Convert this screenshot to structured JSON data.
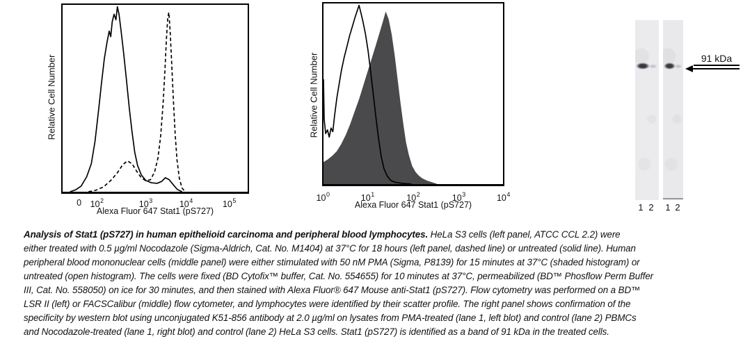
{
  "colors": {
    "curve": "#000000",
    "shaded_fill": "#4a4a4c",
    "strip_background": "#ebebee",
    "band_strong": "#3c3c44",
    "band_faint": "#b6b6bf",
    "text": "#111111"
  },
  "chart_data": [
    {
      "type": "line",
      "panel": "left",
      "title": "",
      "xlabel": "Alexa Fluor 647 Stat1 (pS727)",
      "ylabel": "Relative Cell Number",
      "x_scale": "biexponential (0, 10^2 to 10^5)",
      "grid": false,
      "x_units": "axis_fraction",
      "y_units": "relative_height_0_to_1",
      "ticks": [
        {
          "label": "0",
          "pos": 0.095
        },
        {
          "base": "10",
          "exp": "2",
          "pos": 0.19
        },
        {
          "base": "10",
          "exp": "3",
          "pos": 0.45
        },
        {
          "base": "10",
          "exp": "4",
          "pos": 0.665
        },
        {
          "base": "10",
          "exp": "5",
          "pos": 0.895
        }
      ],
      "series": [
        {
          "name": "HeLa S3 untreated (solid line)",
          "style": "solid",
          "points": [
            [
              0.04,
              0
            ],
            [
              0.07,
              0.01
            ],
            [
              0.1,
              0.03
            ],
            [
              0.13,
              0.08
            ],
            [
              0.155,
              0.15
            ],
            [
              0.175,
              0.27
            ],
            [
              0.195,
              0.44
            ],
            [
              0.21,
              0.58
            ],
            [
              0.225,
              0.71
            ],
            [
              0.24,
              0.8
            ],
            [
              0.252,
              0.86
            ],
            [
              0.26,
              0.83
            ],
            [
              0.268,
              0.91
            ],
            [
              0.278,
              0.95
            ],
            [
              0.288,
              0.92
            ],
            [
              0.296,
              0.99
            ],
            [
              0.305,
              0.95
            ],
            [
              0.315,
              0.87
            ],
            [
              0.33,
              0.74
            ],
            [
              0.345,
              0.6
            ],
            [
              0.36,
              0.45
            ],
            [
              0.375,
              0.32
            ],
            [
              0.39,
              0.21
            ],
            [
              0.405,
              0.14
            ],
            [
              0.425,
              0.09
            ],
            [
              0.45,
              0.06
            ],
            [
              0.48,
              0.048
            ],
            [
              0.51,
              0.045
            ],
            [
              0.535,
              0.055
            ],
            [
              0.555,
              0.075
            ],
            [
              0.575,
              0.065
            ],
            [
              0.6,
              0.035
            ],
            [
              0.62,
              0.012
            ],
            [
              0.645,
              0
            ]
          ]
        },
        {
          "name": "HeLa S3 Nocodazole-treated (dashed line)",
          "style": "dashed",
          "points": [
            [
              0.14,
              0
            ],
            [
              0.18,
              0.008
            ],
            [
              0.22,
              0.025
            ],
            [
              0.26,
              0.06
            ],
            [
              0.295,
              0.1
            ],
            [
              0.325,
              0.145
            ],
            [
              0.35,
              0.165
            ],
            [
              0.375,
              0.15
            ],
            [
              0.4,
              0.11
            ],
            [
              0.425,
              0.075
            ],
            [
              0.45,
              0.058
            ],
            [
              0.475,
              0.065
            ],
            [
              0.497,
              0.105
            ],
            [
              0.515,
              0.18
            ],
            [
              0.53,
              0.3
            ],
            [
              0.543,
              0.47
            ],
            [
              0.553,
              0.65
            ],
            [
              0.561,
              0.82
            ],
            [
              0.568,
              0.93
            ],
            [
              0.574,
              0.96
            ],
            [
              0.581,
              0.86
            ],
            [
              0.589,
              0.7
            ],
            [
              0.598,
              0.5
            ],
            [
              0.608,
              0.31
            ],
            [
              0.618,
              0.17
            ],
            [
              0.631,
              0.07
            ],
            [
              0.645,
              0.02
            ],
            [
              0.662,
              0
            ]
          ]
        }
      ]
    },
    {
      "type": "area",
      "panel": "middle",
      "title": "",
      "xlabel": "Alexa Fluor 647 Stat1 (pS727)",
      "ylabel": "Relative Cell Number",
      "x_scale": "log (10^0 to 10^4)",
      "grid": false,
      "x_units": "axis_fraction",
      "y_units": "relative_height_0_to_1",
      "ticks": [
        {
          "base": "10",
          "exp": "0",
          "pos": 0.005
        },
        {
          "base": "10",
          "exp": "1",
          "pos": 0.25
        },
        {
          "base": "10",
          "exp": "2",
          "pos": 0.5
        },
        {
          "base": "10",
          "exp": "3",
          "pos": 0.75
        },
        {
          "base": "10",
          "exp": "4",
          "pos": 0.995
        }
      ],
      "series": [
        {
          "name": "PBMC PMA-stimulated (shaded histogram)",
          "style": "filled",
          "fill": "#4a4a4c",
          "points": [
            [
              0,
              0.12
            ],
            [
              0.025,
              0.135
            ],
            [
              0.05,
              0.155
            ],
            [
              0.075,
              0.18
            ],
            [
              0.1,
              0.22
            ],
            [
              0.125,
              0.27
            ],
            [
              0.15,
              0.33
            ],
            [
              0.175,
              0.4
            ],
            [
              0.2,
              0.47
            ],
            [
              0.225,
              0.55
            ],
            [
              0.25,
              0.63
            ],
            [
              0.275,
              0.71
            ],
            [
              0.3,
              0.79
            ],
            [
              0.318,
              0.85
            ],
            [
              0.333,
              0.9
            ],
            [
              0.347,
              0.95
            ],
            [
              0.362,
              0.91
            ],
            [
              0.378,
              0.83
            ],
            [
              0.394,
              0.72
            ],
            [
              0.41,
              0.59
            ],
            [
              0.427,
              0.45
            ],
            [
              0.443,
              0.33
            ],
            [
              0.458,
              0.23
            ],
            [
              0.474,
              0.16
            ],
            [
              0.492,
              0.1
            ],
            [
              0.512,
              0.065
            ],
            [
              0.53,
              0.045
            ],
            [
              0.55,
              0.03
            ],
            [
              0.575,
              0.018
            ],
            [
              0.6,
              0.01
            ],
            [
              0.63,
              0
            ]
          ]
        },
        {
          "name": "PBMC untreated (open histogram)",
          "style": "solid",
          "points": [
            [
              0,
              0.58
            ],
            [
              0.004,
              0.36
            ],
            [
              0.012,
              0.28
            ],
            [
              0.022,
              0.3
            ],
            [
              0.032,
              0.26
            ],
            [
              0.042,
              0.31
            ],
            [
              0.052,
              0.29
            ],
            [
              0.062,
              0.38
            ],
            [
              0.075,
              0.48
            ],
            [
              0.088,
              0.56
            ],
            [
              0.1,
              0.63
            ],
            [
              0.115,
              0.7
            ],
            [
              0.13,
              0.76
            ],
            [
              0.145,
              0.82
            ],
            [
              0.16,
              0.87
            ],
            [
              0.175,
              0.92
            ],
            [
              0.188,
              0.96
            ],
            [
              0.198,
              0.99
            ],
            [
              0.208,
              0.95
            ],
            [
              0.22,
              0.9
            ],
            [
              0.234,
              0.83
            ],
            [
              0.248,
              0.74
            ],
            [
              0.262,
              0.63
            ],
            [
              0.277,
              0.5
            ],
            [
              0.292,
              0.37
            ],
            [
              0.307,
              0.25
            ],
            [
              0.322,
              0.15
            ],
            [
              0.337,
              0.085
            ],
            [
              0.355,
              0.045
            ],
            [
              0.375,
              0.02
            ],
            [
              0.4,
              0.01
            ],
            [
              0.44,
              0.004
            ],
            [
              0.49,
              0
            ]
          ]
        }
      ]
    }
  ],
  "blot": {
    "marker_label": "91 kDa",
    "strips": [
      {
        "lanes": [
          "1",
          "2"
        ]
      },
      {
        "lanes": [
          "1",
          "2"
        ]
      }
    ]
  },
  "caption": {
    "lines": [
      {
        "bold": "Analysis of Stat1 (pS727) in human epithelioid carcinoma and peripheral blood lymphocytes.",
        "text": "  HeLa S3 cells (left panel, ATCC CCL 2.2) were"
      },
      {
        "text": "either treated with 0.5 µg/ml Nocodazole (Sigma-Aldrich, Cat. No. M1404) at 37°C for 18 hours (left panel, dashed line) or untreated (solid line).  Human"
      },
      {
        "text": "peripheral blood mononuclear cells (middle panel) were either stimulated with 50 nM PMA (Sigma, P8139) for 15 minutes at 37°C (shaded histogram) or"
      },
      {
        "text": "untreated (open histogram).  The cells were fixed (BD Cytofix™ buffer, Cat. No. 554655) for 10 minutes at 37°C, permeabilized (BD™ Phosflow Perm Buffer"
      },
      {
        "text": "III, Cat. No. 558050) on ice for 30 minutes, and then stained with Alexa Fluor® 647 Mouse anti-Stat1 (pS727).  Flow cytometry was performed on a BD™"
      },
      {
        "text": "LSR II (left) or FACSCalibur (middle) flow cytometer, and lymphocytes were identified by their scatter profile.  The right panel shows confirmation of the"
      },
      {
        "text": "specificity by western blot using unconjugated K51-856 antibody at 2.0 µg/ml on lysates from PMA-treated (lane 1, left blot) and control (lane 2) PBMCs"
      },
      {
        "text": "and Nocodazole-treated (lane 1, right blot) and control (lane 2) HeLa S3 cells.  Stat1 (pS727) is identified as a band of 91 kDa in the treated cells."
      }
    ]
  }
}
